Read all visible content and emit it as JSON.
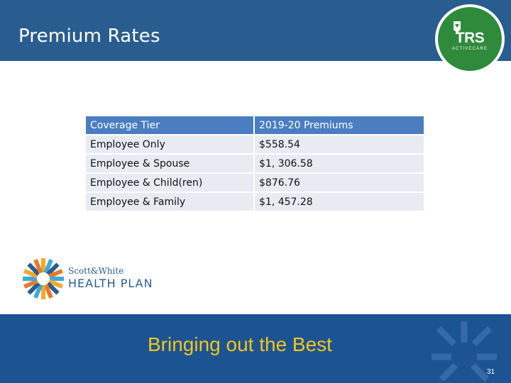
{
  "header": {
    "title": "Premium Rates"
  },
  "trs_logo": {
    "name": "TRS",
    "subtitle": "ACTIVECARE",
    "fine_print": ""
  },
  "table": {
    "headers": [
      "Coverage Tier",
      "2019-20 Premiums"
    ],
    "rows": [
      [
        "Employee Only",
        "$558.54"
      ],
      [
        "Employee & Spouse",
        "$1, 306.58"
      ],
      [
        "Employee & Child(ren)",
        "$876.76"
      ],
      [
        "Employee & Family",
        "$1, 457.28"
      ]
    ]
  },
  "plan_logo": {
    "line1": "Scott&White",
    "line2": "HEALTH PLAN"
  },
  "footer": {
    "tagline": "Bringing out the Best",
    "page_number": "31"
  },
  "colors": {
    "header": "#2a5d8f",
    "table_header": "#4a7ec0",
    "table_cell": "#e8ebf2",
    "footer": "#1c5393",
    "tagline": "#f5c518",
    "trs_green": "#2f8a3c"
  }
}
